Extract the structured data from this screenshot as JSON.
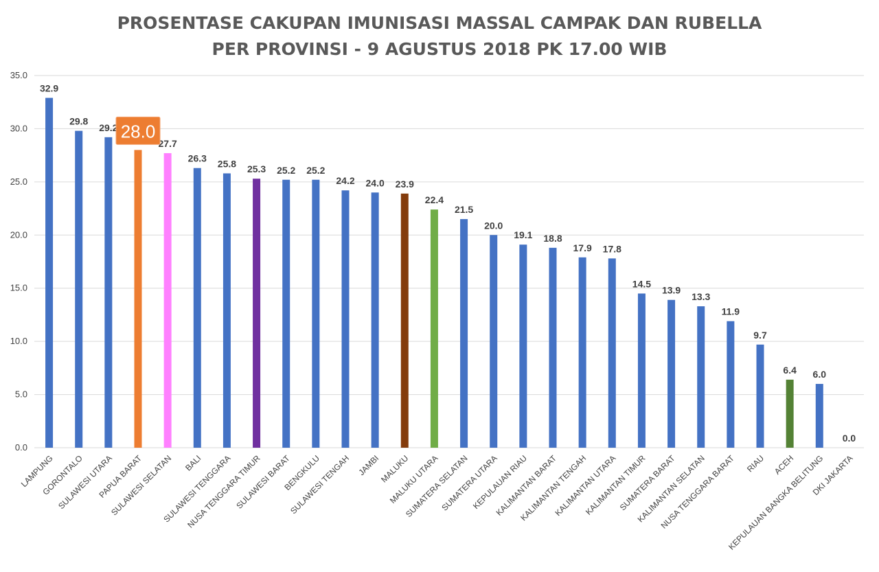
{
  "chart_data": {
    "type": "bar",
    "title": "PROSENTASE CAKUPAN IMUNISASI MASSAL CAMPAK DAN RUBELLA",
    "subtitle": "PER PROVINSI - 9 AGUSTUS 2018 PK 17.00 WIB",
    "xlabel": "",
    "ylabel": "",
    "ylim": [
      0,
      35
    ],
    "yticks": [
      "0.0",
      "5.0",
      "10.0",
      "15.0",
      "20.0",
      "25.0",
      "30.0",
      "35.0"
    ],
    "grid": true,
    "legend": "none",
    "categories": [
      "LAMPUNG",
      "GORONTALO",
      "SULAWESI UTARA",
      "PAPUA BARAT",
      "SULAWESI SELATAN",
      "BALI",
      "SULAWESI TENGGARA",
      "NUSA TENGGARA TIMUR",
      "SULAWESI BARAT",
      "BENGKULU",
      "SULAWESI TENGAH",
      "JAMBI",
      "MALUKU",
      "MALUKU UTARA",
      "SUMATERA SELATAN",
      "SUMATERA UTARA",
      "KEPULAUAN RIAU",
      "KALIMANTAN BARAT",
      "KALIMANTAN TENGAH",
      "KALIMANTAN UTARA",
      "KALIMANTAN TIMUR",
      "SUMATERA BARAT",
      "KALIMANTAN SELATAN",
      "NUSA TENGGARA BARAT",
      "RIAU",
      "ACEH",
      "KEPULAUAN BANGKA BELITUNG",
      "DKI JAKARTA"
    ],
    "values": [
      32.9,
      29.8,
      29.2,
      28.0,
      27.7,
      26.3,
      25.8,
      25.3,
      25.2,
      25.2,
      24.2,
      24.0,
      23.9,
      22.4,
      21.5,
      20.0,
      19.1,
      18.8,
      17.9,
      17.8,
      14.5,
      13.9,
      13.3,
      11.9,
      9.7,
      6.4,
      6.0,
      0.0
    ],
    "value_labels": [
      "32.9",
      "29.8",
      "29.2",
      "28.0",
      "27.7",
      "26.3",
      "25.8",
      "25.3",
      "25.2",
      "25.2",
      "24.2",
      "24.0",
      "23.9",
      "22.4",
      "21.5",
      "20.0",
      "19.1",
      "18.8",
      "17.9",
      "17.8",
      "14.5",
      "13.9",
      "13.3",
      "11.9",
      "9.7",
      "6.4",
      "6.0",
      "0.0"
    ],
    "colors": [
      "#4472c4",
      "#4472c4",
      "#4472c4",
      "#ed7d31",
      "#ff80ff",
      "#4472c4",
      "#4472c4",
      "#7030a0",
      "#4472c4",
      "#4472c4",
      "#4472c4",
      "#4472c4",
      "#843c0c",
      "#70ad47",
      "#4472c4",
      "#4472c4",
      "#4472c4",
      "#4472c4",
      "#4472c4",
      "#4472c4",
      "#4472c4",
      "#4472c4",
      "#4472c4",
      "#4472c4",
      "#4472c4",
      "#548235",
      "#4472c4",
      "#4472c4"
    ],
    "highlight": {
      "category": "PAPUA BARAT",
      "label": "28.0",
      "color": "#ed7d31"
    }
  }
}
